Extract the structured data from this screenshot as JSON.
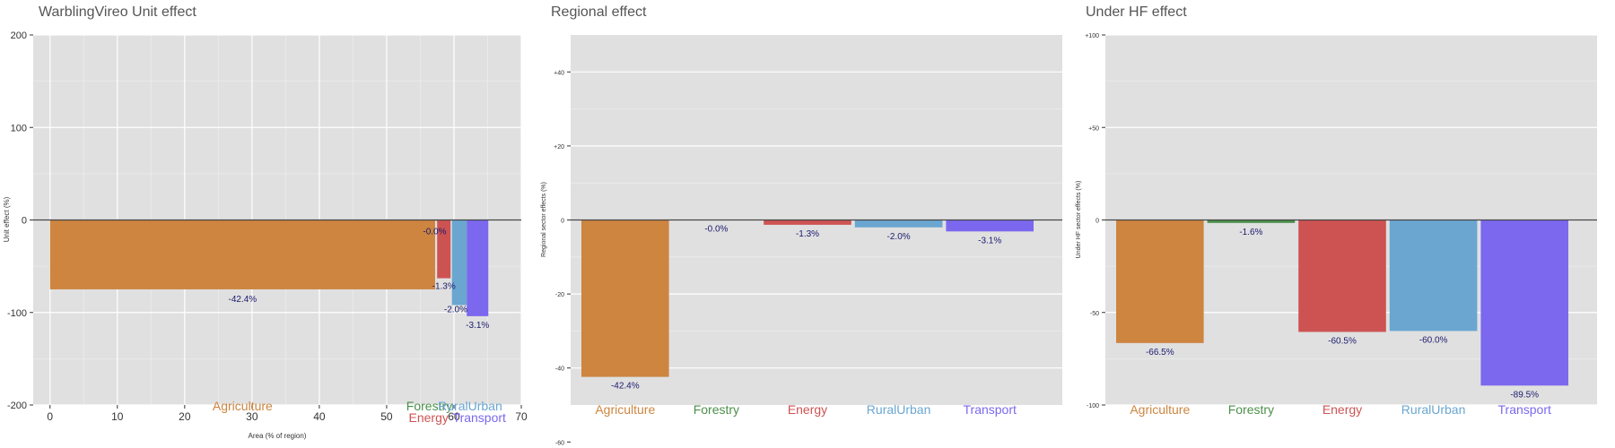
{
  "colors": {
    "agriculture": "#cd853f",
    "forestry": "#4b8f4b",
    "energy": "#cd5353",
    "ruralurban": "#6aa6d0",
    "transport": "#7b68ee",
    "panel_bg": "#e0e0e0",
    "value_label": "#1a1a6e"
  },
  "chart_data": [
    {
      "type": "bar",
      "title": "WarblingVireo Unit effect",
      "xlabel": "Area (% of region)",
      "ylabel": "Unit effect (%)",
      "xlim": [
        -2.5,
        70
      ],
      "ylim": [
        -200,
        200
      ],
      "x_ticks": [
        "0",
        "10",
        "20",
        "30",
        "40",
        "50",
        "60",
        "70"
      ],
      "y_ticks": [
        "200",
        "100",
        "0",
        "-100",
        "-200"
      ],
      "categories": [
        "Agriculture",
        "Forestry",
        "Energy",
        "RuralUrban",
        "Transport"
      ],
      "bars": [
        {
          "category": "Agriculture",
          "x_start": 0,
          "x_end": 57.2,
          "value": -75,
          "label": "-42.4%"
        },
        {
          "category": "Forestry",
          "x_start": 57.3,
          "x_end": 57.5,
          "value": -1,
          "label": "-0.0%"
        },
        {
          "category": "Energy",
          "x_start": 57.5,
          "x_end": 59.5,
          "value": -63,
          "label": "-1.3%"
        },
        {
          "category": "RuralUrban",
          "x_start": 59.7,
          "x_end": 61.9,
          "value": -92,
          "label": "-2.0%"
        },
        {
          "category": "Transport",
          "x_start": 61.9,
          "x_end": 65.1,
          "value": -104,
          "label": "-3.1%"
        }
      ]
    },
    {
      "type": "bar",
      "title": "Regional effect",
      "xlabel": "",
      "ylabel": "Regional sector effects (%)",
      "ylim": [
        -50,
        50
      ],
      "y_ticks": [
        "+40",
        "+20",
        "0",
        "-20",
        "-40",
        "-60"
      ],
      "categories": [
        "Agriculture",
        "Forestry",
        "Energy",
        "RuralUrban",
        "Transport"
      ],
      "values": [
        -42.4,
        0.0,
        -1.3,
        -2.0,
        -3.1
      ],
      "labels": [
        "-42.4%",
        "-0.0%",
        "-1.3%",
        "-2.0%",
        "-3.1%"
      ]
    },
    {
      "type": "bar",
      "title": "Under HF effect",
      "xlabel": "",
      "ylabel": "Under HF sector effects (%)",
      "ylim": [
        -100,
        100
      ],
      "y_ticks": [
        "+100",
        "+50",
        "0",
        "-50",
        "-100"
      ],
      "categories": [
        "Agriculture",
        "Forestry",
        "Energy",
        "RuralUrban",
        "Transport"
      ],
      "values": [
        -66.5,
        -1.6,
        -60.5,
        -60.0,
        -89.5
      ],
      "labels": [
        "-66.5%",
        "-1.6%",
        "-60.5%",
        "-60.0%",
        "-89.5%"
      ]
    }
  ]
}
